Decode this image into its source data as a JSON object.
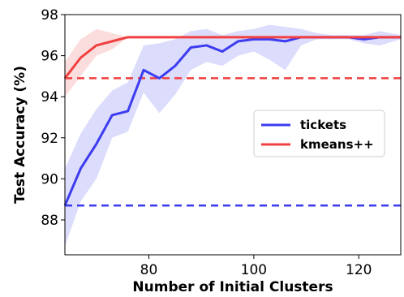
{
  "chart_data": {
    "type": "line",
    "xlabel": "Number of Initial Clusters",
    "ylabel": "Test Accuracy (%)",
    "xlim": [
      64,
      128
    ],
    "ylim": [
      86.3,
      98
    ],
    "xticks": [
      80,
      100,
      120
    ],
    "yticks": [
      88,
      90,
      92,
      94,
      96,
      98
    ],
    "grid": false,
    "legend_position": "center-right",
    "series": [
      {
        "name": "tickets",
        "color": "#3c3cf0",
        "x": [
          64,
          67,
          70,
          73,
          76,
          79,
          82,
          85,
          88,
          91,
          94,
          97,
          100,
          103,
          106,
          109,
          112,
          115,
          118,
          121,
          124,
          128
        ],
        "y": [
          88.7,
          90.5,
          91.7,
          93.1,
          93.3,
          95.3,
          94.9,
          95.5,
          96.4,
          96.5,
          96.2,
          96.7,
          96.8,
          96.8,
          96.7,
          96.9,
          96.9,
          96.9,
          96.9,
          96.8,
          96.9,
          96.9
        ],
        "y_low": [
          86.7,
          88.9,
          90.0,
          92.0,
          92.3,
          94.2,
          93.2,
          94.1,
          95.3,
          95.7,
          95.5,
          96.0,
          96.2,
          95.8,
          95.3,
          96.5,
          96.8,
          96.8,
          96.8,
          96.6,
          96.5,
          96.8
        ],
        "y_high": [
          90.5,
          92.2,
          93.4,
          94.3,
          94.7,
          96.5,
          96.6,
          96.8,
          97.2,
          97.3,
          97.0,
          97.2,
          97.3,
          97.5,
          97.4,
          97.3,
          97.1,
          97.0,
          97.0,
          97.0,
          97.2,
          97.0
        ],
        "baseline": 88.7
      },
      {
        "name": "kmeans++",
        "color": "#f04040",
        "x": [
          64,
          67,
          70,
          73,
          76,
          79,
          82,
          85,
          88,
          91,
          94,
          97,
          100,
          103,
          106,
          109,
          112,
          115,
          118,
          121,
          124,
          128
        ],
        "y": [
          94.9,
          95.9,
          96.5,
          96.7,
          96.9,
          96.9,
          96.9,
          96.9,
          96.9,
          96.9,
          96.9,
          96.9,
          96.9,
          96.9,
          96.9,
          96.9,
          96.9,
          96.9,
          96.9,
          96.9,
          96.9,
          96.9
        ],
        "y_low": [
          94.0,
          95.0,
          96.0,
          96.3,
          96.9,
          96.9,
          96.9,
          96.9,
          96.9,
          96.9,
          96.9,
          96.9,
          96.9,
          96.9,
          96.9,
          96.9,
          96.9,
          96.9,
          96.9,
          96.9,
          96.9,
          96.9
        ],
        "y_high": [
          95.7,
          96.8,
          97.3,
          97.1,
          96.9,
          96.9,
          96.9,
          96.9,
          96.9,
          96.9,
          96.9,
          96.9,
          96.9,
          96.9,
          96.9,
          96.9,
          96.9,
          96.9,
          96.9,
          96.9,
          96.9,
          96.9
        ],
        "baseline": 94.9
      }
    ]
  }
}
